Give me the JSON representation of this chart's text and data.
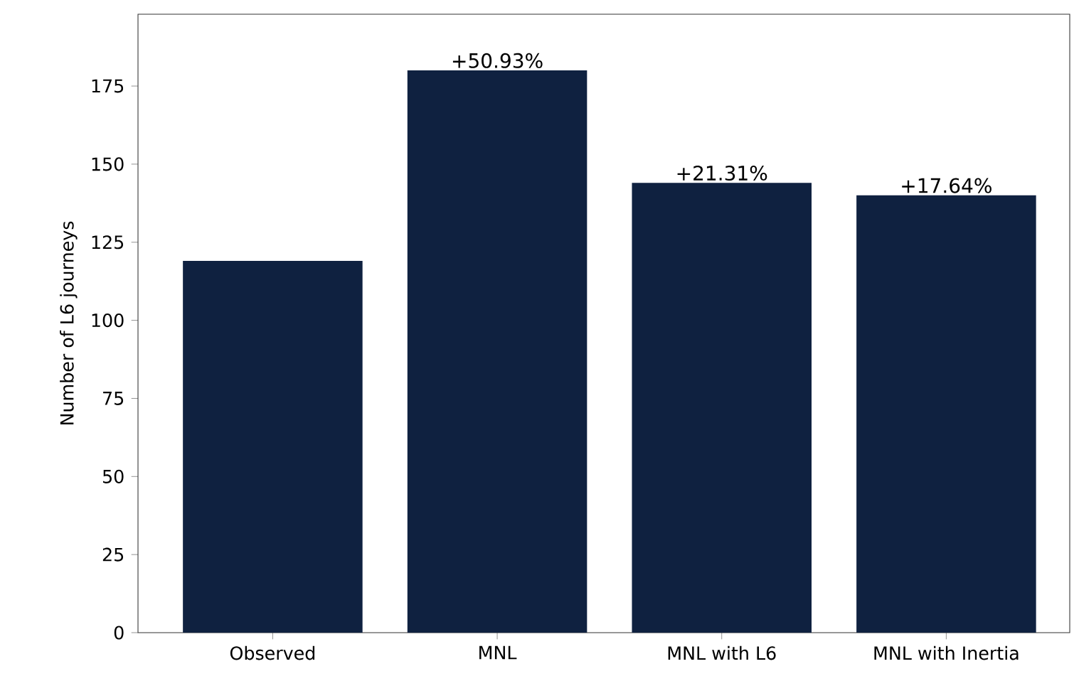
{
  "chart_data": {
    "type": "bar",
    "ylabel": "Number of L6 journeys",
    "categories": [
      "Observed",
      "MNL",
      "MNL with L6",
      "MNL with Inertia"
    ],
    "values": [
      119,
      180,
      144,
      140
    ],
    "annotations": [
      {
        "text": "+50.93%",
        "x": "MNL",
        "y": 180
      },
      {
        "text": "+21.31%",
        "x": "MNL with L6",
        "y": 144
      },
      {
        "text": "+17.64%",
        "x": "MNL with Inertia",
        "y": 140
      }
    ],
    "color": "#0f2140",
    "ylim": [
      0,
      198
    ],
    "yticks": [
      0,
      25,
      50,
      75,
      100,
      125,
      150,
      175
    ],
    "grid": false
  }
}
